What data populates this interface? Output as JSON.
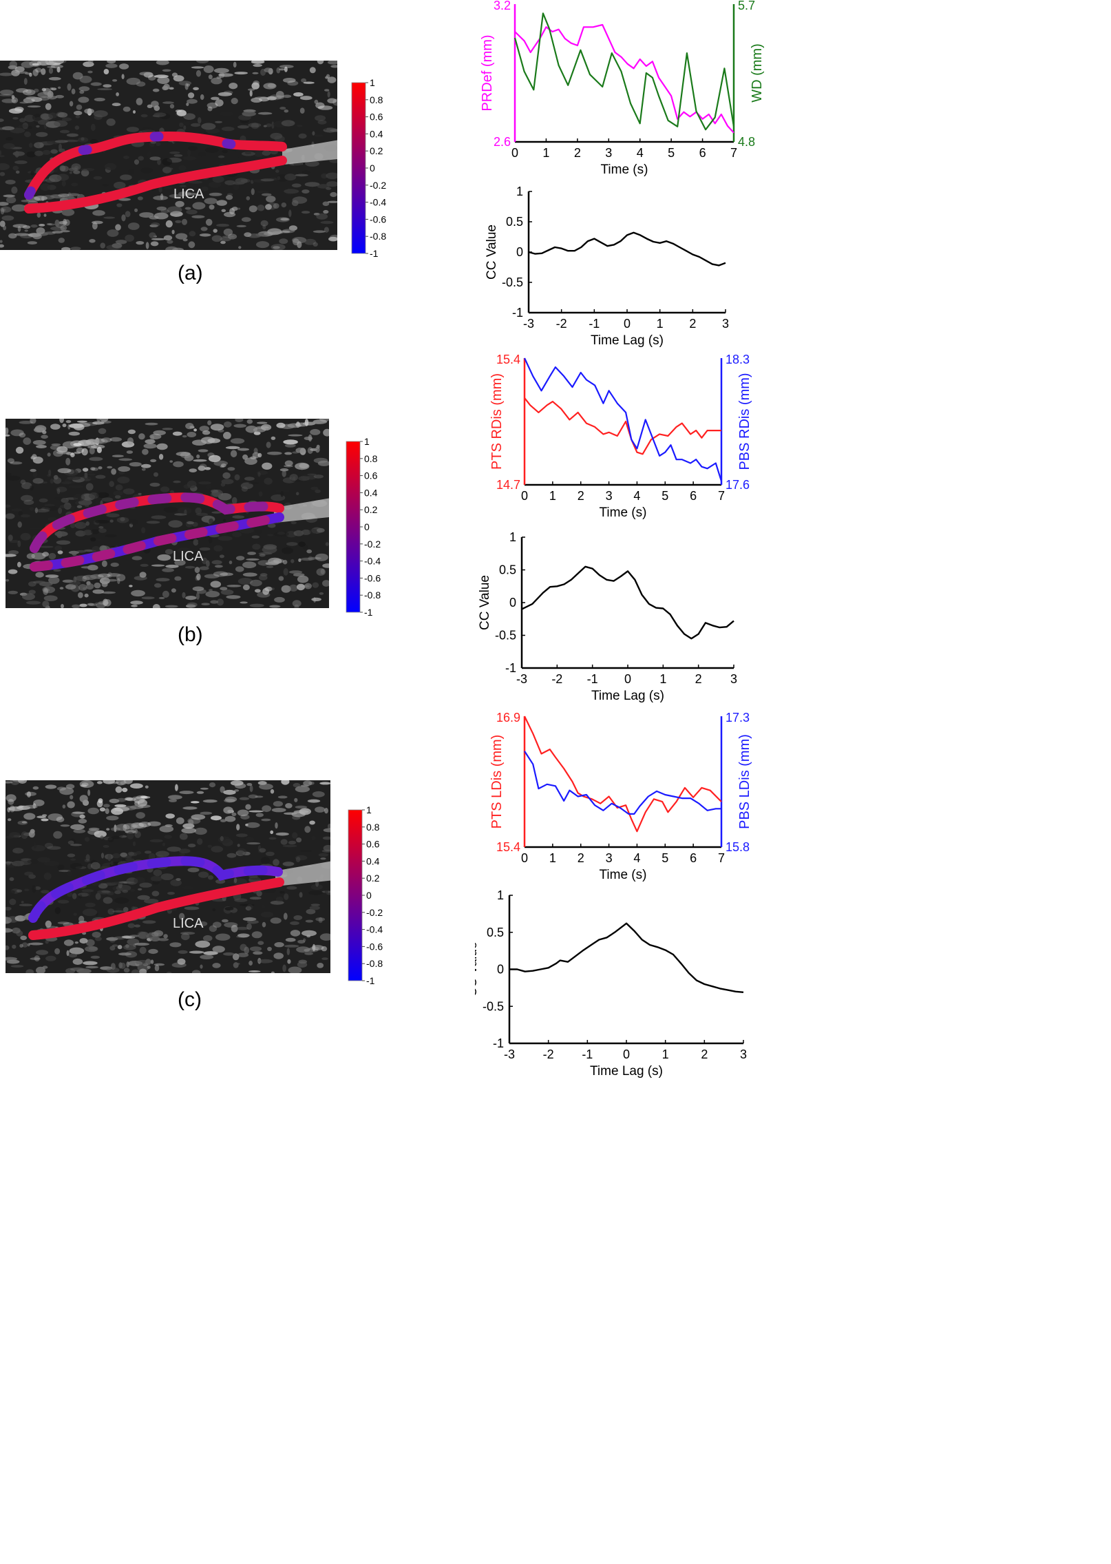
{
  "panels": [
    {
      "label": "(a)",
      "image": {
        "vessel_text": "LICA",
        "colorbar_ticks": [
          "1",
          "0.8",
          "0.6",
          "0.4",
          "0.2",
          "0",
          "-0.2",
          "-0.4",
          "-0.6",
          "-0.8",
          "-1"
        ]
      },
      "colorbar": {
        "colors": [
          "#ff0000",
          "#0000ff"
        ],
        "min": -1,
        "max": 1
      },
      "dual": {
        "x": {
          "label": "Time (s)",
          "ticks": [
            "0",
            "1",
            "2",
            "3",
            "4",
            "5",
            "6",
            "7"
          ],
          "range": [
            0,
            7
          ]
        },
        "left": {
          "label": "PRDef (mm)",
          "color": "#ff00ff",
          "ticks": [
            "2.6",
            "3.2"
          ],
          "range": [
            2.6,
            3.2
          ]
        },
        "right": {
          "label": "WD (mm)",
          "color": "#1a7a1a",
          "ticks": [
            "4.8",
            "5.7"
          ],
          "range": [
            4.8,
            5.7
          ]
        }
      },
      "cc": {
        "x": {
          "label": "Time Lag (s)",
          "ticks": [
            "-3",
            "-2",
            "-1",
            "0",
            "1",
            "2",
            "3"
          ],
          "range": [
            -3,
            3
          ]
        },
        "y": {
          "label": "CC Value",
          "ticks": [
            "1",
            "0.5",
            "0",
            "-0.5",
            "-1"
          ],
          "range": [
            -1,
            1
          ]
        }
      }
    },
    {
      "label": "(b)",
      "image": {
        "vessel_text": "LICA",
        "colorbar_ticks": [
          "1",
          "0.8",
          "0.6",
          "0.4",
          "0.2",
          "0",
          "-0.2",
          "-0.4",
          "-0.6",
          "-0.8",
          "-1"
        ]
      },
      "colorbar": {
        "colors": [
          "#ff0000",
          "#0000ff"
        ],
        "min": -1,
        "max": 1
      },
      "dual": {
        "x": {
          "label": "Time (s)",
          "ticks": [
            "0",
            "1",
            "2",
            "3",
            "4",
            "5",
            "6",
            "7"
          ],
          "range": [
            0,
            7
          ]
        },
        "left": {
          "label": "PTS RDis (mm)",
          "color": "#ff2020",
          "ticks": [
            "14.7",
            "15.4"
          ],
          "range": [
            14.7,
            15.4
          ]
        },
        "right": {
          "label": "PBS RDis (mm)",
          "color": "#1a1aff",
          "ticks": [
            "17.6",
            "18.3"
          ],
          "range": [
            17.6,
            18.3
          ]
        }
      },
      "cc": {
        "x": {
          "label": "Time Lag (s)",
          "ticks": [
            "-3",
            "-2",
            "-1",
            "0",
            "1",
            "2",
            "3"
          ],
          "range": [
            -3,
            3
          ]
        },
        "y": {
          "label": "CC Value",
          "ticks": [
            "1",
            "0.5",
            "0",
            "-0.5",
            "-1"
          ],
          "range": [
            -1,
            1
          ]
        }
      }
    },
    {
      "label": "(c)",
      "image": {
        "vessel_text": "LICA",
        "colorbar_ticks": [
          "1",
          "0.8",
          "0.6",
          "0.4",
          "0.2",
          "0",
          "-0.2",
          "-0.4",
          "-0.6",
          "-0.8",
          "-1"
        ]
      },
      "colorbar": {
        "colors": [
          "#ff0000",
          "#0000ff"
        ],
        "min": -1,
        "max": 1
      },
      "dual": {
        "x": {
          "label": "Time (s)",
          "ticks": [
            "0",
            "1",
            "2",
            "3",
            "4",
            "5",
            "6",
            "7"
          ],
          "range": [
            0,
            7
          ]
        },
        "left": {
          "label": "PTS LDis (mm)",
          "color": "#ff2020",
          "ticks": [
            "15.4",
            "16.9"
          ],
          "range": [
            15.4,
            16.9
          ]
        },
        "right": {
          "label": "PBS LDis (mm)",
          "color": "#1a1aff",
          "ticks": [
            "15.8",
            "17.3"
          ],
          "range": [
            15.8,
            17.3
          ]
        }
      },
      "cc": {
        "x": {
          "label": "Time Lag (s)",
          "ticks": [
            "-3",
            "-2",
            "-1",
            "0",
            "1",
            "2",
            "3"
          ],
          "range": [
            -3,
            3
          ]
        },
        "y": {
          "label": "CC Value",
          "ticks": [
            "1",
            "0.5",
            "0",
            "-0.5",
            "-1"
          ],
          "range": [
            -1,
            1
          ]
        }
      }
    }
  ],
  "chart_data": [
    {
      "type": "line",
      "panel": "(a)",
      "xlabel": "Time (s)",
      "series": [
        {
          "name": "PRDef (mm)",
          "axis": "left",
          "x": [
            0,
            0.3,
            0.5,
            0.8,
            1.0,
            1.2,
            1.4,
            1.6,
            1.8,
            2.0,
            2.2,
            2.5,
            2.8,
            3.0,
            3.2,
            3.4,
            3.6,
            3.8,
            4.0,
            4.2,
            4.4,
            4.6,
            4.8,
            5.0,
            5.2,
            5.4,
            5.6,
            5.8,
            6.0,
            6.2,
            6.4,
            6.6,
            6.8,
            7.0
          ],
          "y": [
            3.08,
            3.04,
            2.99,
            3.05,
            3.1,
            3.08,
            3.09,
            3.05,
            3.03,
            3.02,
            3.1,
            3.1,
            3.11,
            3.05,
            2.99,
            2.97,
            2.94,
            2.92,
            2.96,
            2.93,
            2.95,
            2.88,
            2.84,
            2.8,
            2.7,
            2.73,
            2.71,
            2.73,
            2.7,
            2.72,
            2.68,
            2.72,
            2.67,
            2.64
          ]
        },
        {
          "name": "WD (mm)",
          "axis": "right",
          "x": [
            0,
            0.3,
            0.6,
            0.9,
            1.1,
            1.4,
            1.7,
            2.1,
            2.4,
            2.8,
            3.1,
            3.4,
            3.7,
            4.0,
            4.2,
            4.4,
            4.6,
            4.9,
            5.2,
            5.5,
            5.8,
            6.1,
            6.4,
            6.7,
            7.0
          ],
          "y": [
            5.48,
            5.26,
            5.14,
            5.64,
            5.54,
            5.3,
            5.17,
            5.4,
            5.24,
            5.16,
            5.38,
            5.26,
            5.05,
            4.92,
            5.25,
            5.22,
            5.1,
            4.94,
            4.9,
            5.38,
            5.0,
            4.88,
            4.96,
            5.28,
            4.9
          ]
        }
      ]
    },
    {
      "type": "line",
      "panel": "(a)",
      "xlabel": "Time Lag (s)",
      "ylabel": "CC Value",
      "ylim": [
        -1,
        1
      ],
      "x": [
        -3,
        -2.8,
        -2.6,
        -2.4,
        -2.2,
        -2.0,
        -1.8,
        -1.6,
        -1.4,
        -1.2,
        -1.0,
        -0.8,
        -0.6,
        -0.4,
        -0.2,
        0.0,
        0.2,
        0.4,
        0.6,
        0.8,
        1.0,
        1.2,
        1.4,
        1.6,
        1.8,
        2.0,
        2.2,
        2.4,
        2.6,
        2.8,
        3.0
      ],
      "y": [
        0.0,
        -0.03,
        -0.02,
        0.03,
        0.08,
        0.06,
        0.02,
        0.02,
        0.08,
        0.18,
        0.22,
        0.16,
        0.1,
        0.12,
        0.18,
        0.28,
        0.32,
        0.28,
        0.22,
        0.17,
        0.15,
        0.18,
        0.14,
        0.08,
        0.02,
        -0.04,
        -0.08,
        -0.14,
        -0.2,
        -0.22,
        -0.18
      ]
    },
    {
      "type": "line",
      "panel": "(b)",
      "xlabel": "Time (s)",
      "series": [
        {
          "name": "PTS RDis (mm)",
          "axis": "left",
          "x": [
            0,
            0.2,
            0.5,
            0.8,
            1.0,
            1.3,
            1.6,
            1.9,
            2.2,
            2.5,
            2.8,
            3.0,
            3.3,
            3.6,
            3.8,
            4.0,
            4.2,
            4.5,
            4.8,
            5.1,
            5.4,
            5.6,
            5.9,
            6.1,
            6.3,
            6.5,
            6.8,
            7.0
          ],
          "y": [
            15.18,
            15.14,
            15.1,
            15.14,
            15.16,
            15.12,
            15.06,
            15.1,
            15.04,
            15.02,
            14.98,
            14.99,
            14.97,
            15.05,
            14.95,
            14.88,
            14.87,
            14.95,
            14.98,
            14.97,
            15.02,
            15.04,
            14.98,
            15.0,
            14.96,
            15.0,
            15.0,
            15.0
          ]
        },
        {
          "name": "PBS RDis (mm)",
          "axis": "right",
          "x": [
            0,
            0.3,
            0.6,
            0.9,
            1.1,
            1.4,
            1.7,
            2.0,
            2.2,
            2.5,
            2.8,
            3.0,
            3.3,
            3.6,
            3.8,
            4.0,
            4.3,
            4.5,
            4.8,
            5.0,
            5.2,
            5.4,
            5.6,
            5.9,
            6.1,
            6.3,
            6.5,
            6.8,
            7.0
          ],
          "y": [
            18.3,
            18.2,
            18.12,
            18.2,
            18.25,
            18.2,
            18.14,
            18.22,
            18.18,
            18.15,
            18.05,
            18.12,
            18.05,
            18.0,
            17.85,
            17.8,
            17.96,
            17.88,
            17.76,
            17.78,
            17.82,
            17.74,
            17.74,
            17.72,
            17.74,
            17.7,
            17.69,
            17.72,
            17.62
          ]
        }
      ]
    },
    {
      "type": "line",
      "panel": "(b)",
      "xlabel": "Time Lag (s)",
      "ylabel": "CC Value",
      "ylim": [
        -1,
        1
      ],
      "x": [
        -3,
        -2.7,
        -2.4,
        -2.2,
        -2.0,
        -1.8,
        -1.6,
        -1.4,
        -1.2,
        -1.0,
        -0.8,
        -0.6,
        -0.4,
        -0.2,
        0.0,
        0.2,
        0.4,
        0.6,
        0.8,
        1.0,
        1.2,
        1.4,
        1.6,
        1.8,
        2.0,
        2.2,
        2.4,
        2.6,
        2.8,
        3.0
      ],
      "y": [
        -0.1,
        -0.02,
        0.15,
        0.24,
        0.25,
        0.28,
        0.35,
        0.45,
        0.55,
        0.52,
        0.42,
        0.35,
        0.33,
        0.4,
        0.48,
        0.35,
        0.12,
        -0.02,
        -0.08,
        -0.09,
        -0.18,
        -0.35,
        -0.48,
        -0.55,
        -0.48,
        -0.31,
        -0.35,
        -0.38,
        -0.37,
        -0.28
      ]
    },
    {
      "type": "line",
      "panel": "(c)",
      "xlabel": "Time (s)",
      "series": [
        {
          "name": "PTS LDis (mm)",
          "axis": "left",
          "x": [
            0,
            0.3,
            0.6,
            0.9,
            1.1,
            1.4,
            1.7,
            1.9,
            2.1,
            2.4,
            2.7,
            3.0,
            3.3,
            3.6,
            3.8,
            4.0,
            4.3,
            4.6,
            4.9,
            5.1,
            5.4,
            5.7,
            6.0,
            6.3,
            6.6,
            7.0
          ],
          "y": [
            16.9,
            16.7,
            16.47,
            16.52,
            16.43,
            16.3,
            16.15,
            16.02,
            15.98,
            15.95,
            15.9,
            15.98,
            15.85,
            15.88,
            15.72,
            15.58,
            15.8,
            15.95,
            15.92,
            15.8,
            15.92,
            16.08,
            15.97,
            16.08,
            16.05,
            15.92
          ]
        },
        {
          "name": "PBS LDis (mm)",
          "axis": "right",
          "x": [
            0,
            0.3,
            0.5,
            0.8,
            1.1,
            1.4,
            1.6,
            1.9,
            2.2,
            2.5,
            2.8,
            3.1,
            3.4,
            3.7,
            3.9,
            4.1,
            4.4,
            4.7,
            5.0,
            5.3,
            5.6,
            5.9,
            6.2,
            6.5,
            6.8,
            7.0
          ],
          "y": [
            16.9,
            16.75,
            16.47,
            16.52,
            16.5,
            16.33,
            16.45,
            16.38,
            16.4,
            16.28,
            16.22,
            16.3,
            16.25,
            16.18,
            16.18,
            16.27,
            16.38,
            16.44,
            16.4,
            16.38,
            16.36,
            16.36,
            16.3,
            16.22,
            16.24,
            16.24
          ]
        }
      ]
    },
    {
      "type": "line",
      "panel": "(c)",
      "xlabel": "Time Lag (s)",
      "ylabel": "CC Value",
      "ylim": [
        -1,
        1
      ],
      "x": [
        -3,
        -2.8,
        -2.6,
        -2.4,
        -2.2,
        -2.0,
        -1.8,
        -1.7,
        -1.5,
        -1.3,
        -1.1,
        -0.9,
        -0.7,
        -0.5,
        -0.3,
        -0.1,
        0.0,
        0.2,
        0.4,
        0.6,
        0.8,
        1.0,
        1.2,
        1.4,
        1.6,
        1.8,
        2.0,
        2.2,
        2.4,
        2.6,
        2.8,
        3.0
      ],
      "y": [
        0.0,
        0.0,
        -0.03,
        -0.02,
        0.0,
        0.02,
        0.08,
        0.12,
        0.1,
        0.18,
        0.26,
        0.33,
        0.4,
        0.43,
        0.5,
        0.58,
        0.62,
        0.52,
        0.4,
        0.33,
        0.3,
        0.26,
        0.2,
        0.08,
        -0.05,
        -0.15,
        -0.2,
        -0.23,
        -0.26,
        -0.28,
        -0.3,
        -0.31
      ]
    }
  ]
}
